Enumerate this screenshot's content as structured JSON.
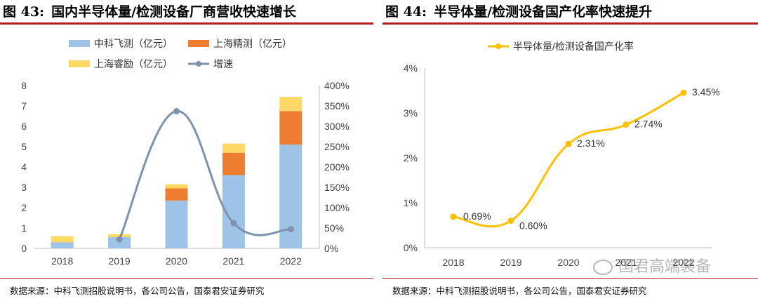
{
  "left": {
    "title_num": "图 43:",
    "title_text": "国内半导体量/检测设备厂商营收快速增长",
    "source": "数据来源：中科飞测招股说明书，各公司公告，国泰君安证券研究",
    "colors": {
      "zhongke": "#9dc3e6",
      "shanghai_jingce": "#ed7d31",
      "shanghai_ruili": "#ffd966",
      "growth": "#7f93b0"
    }
  },
  "right": {
    "title_num": "图 44:",
    "title_text": "半导体量/检测设备国产化率快速提升",
    "source": "数据来源：中科飞测招股说明书，各公司公告，国泰君安证券研究",
    "watermark": "国君高端装备",
    "colors": {
      "line": "#ffc000"
    }
  },
  "chart_data": [
    {
      "type": "bar",
      "stacked": true,
      "title": "国内半导体量/检测设备厂商营收快速增长",
      "categories": [
        "2018",
        "2019",
        "2020",
        "2021",
        "2022"
      ],
      "series": [
        {
          "name": "中科飞测（亿元）",
          "values": [
            0.3,
            0.55,
            2.35,
            3.6,
            5.1
          ]
        },
        {
          "name": "上海精测（亿元）",
          "values": [
            0.0,
            0.0,
            0.6,
            1.1,
            1.65
          ]
        },
        {
          "name": "上海睿励（亿元）",
          "values": [
            0.3,
            0.15,
            0.2,
            0.45,
            0.7
          ]
        }
      ],
      "secondary_series": {
        "name": "增速",
        "type": "line",
        "categories": [
          "2019",
          "2020",
          "2021",
          "2022"
        ],
        "values": [
          22,
          337,
          62,
          47
        ]
      },
      "legend": [
        "中科飞测（亿元）",
        "上海精测（亿元）",
        "上海睿励（亿元）",
        "增速"
      ],
      "ylim": [
        0,
        8
      ],
      "yticks": [
        "0",
        "1",
        "2",
        "3",
        "4",
        "5",
        "6",
        "7",
        "8"
      ],
      "y2lim": [
        0,
        400
      ],
      "y2ticks": [
        "0%",
        "50%",
        "100%",
        "150%",
        "200%",
        "250%",
        "300%",
        "350%",
        "400%"
      ]
    },
    {
      "type": "line",
      "title": "半导体量/检测设备国产化率快速提升",
      "categories": [
        "2018",
        "2019",
        "2020",
        "2021",
        "2022"
      ],
      "series": [
        {
          "name": "半导体量/检测设备国产化率",
          "values": [
            0.69,
            0.6,
            2.31,
            2.74,
            3.45
          ]
        }
      ],
      "data_labels": [
        "0.69%",
        "0.60%",
        "2.31%",
        "2.74%",
        "3.45%"
      ],
      "ylim": [
        0,
        4
      ],
      "yticks": [
        "0%",
        "1%",
        "2%",
        "3%",
        "4%"
      ],
      "legend": [
        "半导体量/检测设备国产化率"
      ]
    }
  ]
}
